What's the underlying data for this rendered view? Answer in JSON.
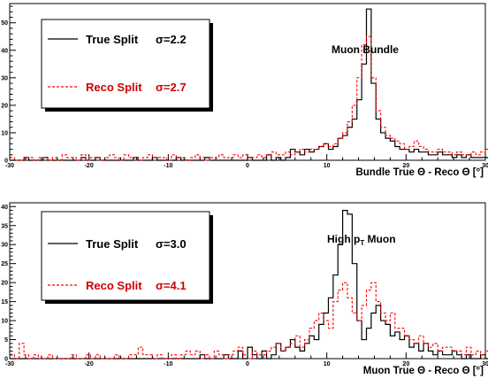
{
  "chart_data": [
    {
      "type": "line",
      "annotation": "Muon Bundle",
      "xlabel": "Bundle True Θ - Reco Θ [°]",
      "xlim": [
        -30,
        30
      ],
      "ylim": [
        0,
        57
      ],
      "xticks": [
        -30,
        -20,
        -10,
        0,
        10,
        20,
        30
      ],
      "yticks": [
        0,
        10,
        20,
        30,
        40,
        50
      ],
      "bin_width": 0.6,
      "legend": [
        {
          "label": "True Split",
          "sigma": "σ=2.2",
          "color": "#000000",
          "style": "solid"
        },
        {
          "label": "Reco Split",
          "sigma": "σ=2.7",
          "color": "#ff0000",
          "style": "dashed"
        }
      ],
      "series": [
        {
          "name": "True Split",
          "color": "#000000",
          "style": "solid",
          "values": [
            0,
            0,
            0,
            1,
            0,
            0,
            0,
            1,
            0,
            0,
            0,
            0,
            0,
            0,
            0,
            1,
            0,
            0,
            1,
            0,
            0,
            0,
            0,
            0,
            0,
            0,
            1,
            0,
            0,
            0,
            1,
            0,
            0,
            0,
            0,
            1,
            0,
            0,
            0,
            0,
            0,
            1,
            0,
            0,
            0,
            0,
            0,
            0,
            0,
            0,
            1,
            0,
            0,
            0,
            2,
            0,
            1,
            0,
            1,
            4,
            3,
            2,
            4,
            3,
            4,
            5,
            6,
            4,
            5,
            8,
            9,
            12,
            15,
            22,
            35,
            55,
            28,
            15,
            10,
            8,
            7,
            5,
            4,
            4,
            3,
            4,
            3,
            3,
            2,
            2,
            3,
            2,
            2,
            1,
            2,
            1,
            2,
            1,
            1,
            1,
            1,
            1,
            0,
            1,
            1,
            1,
            0,
            0,
            0,
            1,
            0,
            0,
            1,
            0,
            1,
            0,
            0,
            0,
            0,
            0
          ]
        },
        {
          "name": "Reco Split",
          "color": "#ff0000",
          "style": "dashed",
          "values": [
            1,
            0,
            0,
            1,
            1,
            0,
            1,
            1,
            0,
            1,
            0,
            2,
            1,
            1,
            0,
            2,
            0,
            1,
            1,
            0,
            1,
            2,
            1,
            0,
            2,
            1,
            1,
            0,
            1,
            2,
            1,
            1,
            1,
            0,
            2,
            1,
            1,
            0,
            1,
            2,
            1,
            0,
            1,
            1,
            2,
            1,
            1,
            2,
            1,
            2,
            1,
            1,
            2,
            1,
            2,
            3,
            2,
            2,
            3,
            2,
            3,
            4,
            3,
            4,
            4,
            5,
            6,
            5,
            6,
            8,
            10,
            14,
            20,
            30,
            42,
            45,
            30,
            18,
            12,
            9,
            8,
            7,
            6,
            4,
            5,
            7,
            5,
            4,
            3,
            3,
            4,
            3,
            3,
            2,
            3,
            2,
            2,
            3,
            2,
            3,
            4,
            3,
            2,
            2,
            1,
            2,
            1,
            2,
            1,
            1,
            2,
            1,
            1,
            2,
            0,
            1,
            1,
            0,
            1,
            0
          ]
        }
      ]
    },
    {
      "type": "line",
      "annotation": "High p",
      "annotation_sub": "T",
      "annotation_tail": " Muon",
      "xlabel": "Muon True Θ - Reco Θ [°]",
      "xlim": [
        -30,
        30
      ],
      "ylim": [
        0,
        41
      ],
      "xticks": [
        -30,
        -20,
        -10,
        0,
        10,
        20,
        30
      ],
      "yticks": [
        0,
        5,
        10,
        15,
        20,
        25,
        30,
        35,
        40
      ],
      "bin_width": 0.6,
      "legend": [
        {
          "label": "True Split",
          "sigma": "σ=3.0",
          "color": "#000000",
          "style": "solid"
        },
        {
          "label": "Reco Split",
          "sigma": "σ=4.1",
          "color": "#ff0000",
          "style": "dashed"
        }
      ],
      "series": [
        {
          "name": "True Split",
          "color": "#000000",
          "style": "solid",
          "values": [
            0,
            0,
            0,
            0,
            0,
            0,
            0,
            0,
            0,
            0,
            0,
            0,
            0,
            0,
            0,
            0,
            0,
            0,
            0,
            0,
            0,
            0,
            0,
            0,
            0,
            0,
            0,
            0,
            0,
            0,
            0,
            0,
            0,
            0,
            0,
            0,
            0,
            0,
            0,
            0,
            1,
            0,
            0,
            0,
            0,
            1,
            0,
            0,
            2,
            0,
            3,
            1,
            0,
            2,
            0,
            1,
            4,
            2,
            3,
            5,
            3,
            2,
            4,
            6,
            5,
            9,
            12,
            16,
            22,
            30,
            39,
            38,
            25,
            10,
            5,
            8,
            12,
            14,
            10,
            9,
            6,
            7,
            5,
            6,
            3,
            4,
            2,
            4,
            2,
            1,
            2,
            1,
            1,
            2,
            1,
            0,
            1,
            0,
            0,
            1,
            0,
            0,
            1,
            0,
            0,
            0,
            0,
            0,
            0,
            1,
            0,
            0,
            0,
            0,
            0,
            0,
            0,
            0,
            0,
            0
          ]
        },
        {
          "name": "Reco Split",
          "color": "#ff0000",
          "style": "dashed",
          "values": [
            1,
            0,
            4,
            1,
            0,
            1,
            0,
            0,
            1,
            0,
            0,
            0,
            0,
            1,
            0,
            0,
            1,
            0,
            1,
            0,
            0,
            0,
            1,
            0,
            0,
            1,
            1,
            3,
            1,
            1,
            0,
            1,
            0,
            0,
            1,
            0,
            1,
            2,
            1,
            2,
            0,
            1,
            0,
            2,
            1,
            0,
            1,
            2,
            3,
            1,
            0,
            2,
            1,
            1,
            2,
            3,
            4,
            2,
            3,
            4,
            6,
            3,
            5,
            8,
            10,
            12,
            10,
            8,
            15,
            18,
            20,
            16,
            12,
            10,
            14,
            18,
            20,
            15,
            12,
            10,
            12,
            8,
            8,
            6,
            5,
            4,
            6,
            4,
            3,
            4,
            2,
            3,
            3,
            2,
            2,
            1,
            3,
            1,
            2,
            1,
            2,
            1,
            1,
            1,
            2,
            1,
            0,
            1,
            1,
            2,
            0,
            1,
            1,
            0,
            2,
            1,
            1,
            0,
            1,
            0
          ]
        }
      ]
    }
  ]
}
